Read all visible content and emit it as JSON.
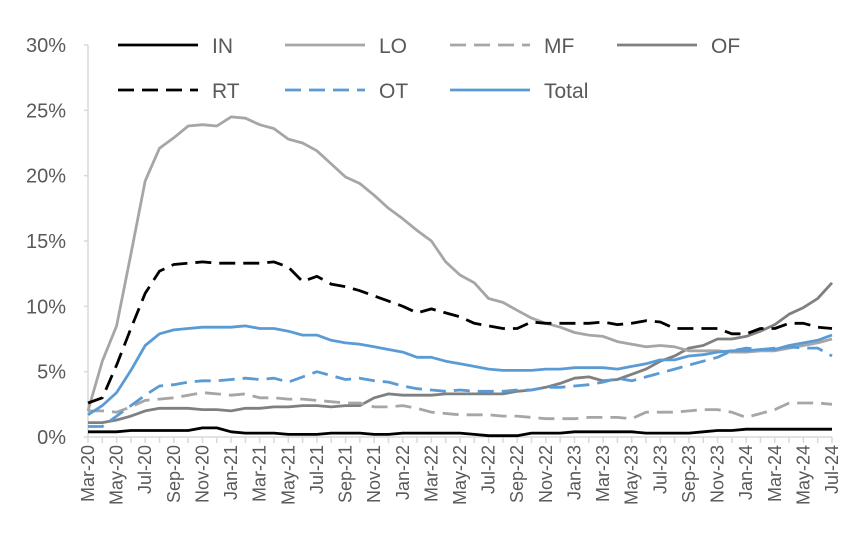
{
  "chart_data": {
    "type": "line",
    "title": "",
    "xlabel": "",
    "ylabel": "",
    "ylim": [
      0,
      30
    ],
    "y_ticks": [
      "0%",
      "5%",
      "10%",
      "15%",
      "20%",
      "25%",
      "30%"
    ],
    "grid": false,
    "legend_placement": "top",
    "x": [
      "Mar-20",
      "Apr-20",
      "May-20",
      "Jun-20",
      "Jul-20",
      "Aug-20",
      "Sep-20",
      "Oct-20",
      "Nov-20",
      "Dec-20",
      "Jan-21",
      "Feb-21",
      "Mar-21",
      "Apr-21",
      "May-21",
      "Jun-21",
      "Jul-21",
      "Aug-21",
      "Sep-21",
      "Oct-21",
      "Nov-21",
      "Dec-21",
      "Jan-22",
      "Feb-22",
      "Mar-22",
      "Apr-22",
      "May-22",
      "Jun-22",
      "Jul-22",
      "Aug-22",
      "Sep-22",
      "Oct-22",
      "Nov-22",
      "Dec-22",
      "Jan-23",
      "Feb-23",
      "Mar-23",
      "Apr-23",
      "May-23",
      "Jun-23",
      "Jul-23",
      "Aug-23",
      "Sep-23",
      "Oct-23",
      "Nov-23",
      "Dec-23",
      "Jan-24",
      "Feb-24",
      "Mar-24",
      "Apr-24",
      "May-24",
      "Jun-24",
      "Jul-24"
    ],
    "x_tick_labels": [
      "Mar-20",
      "May-20",
      "Jul-20",
      "Sep-20",
      "Nov-20",
      "Jan-21",
      "Mar-21",
      "May-21",
      "Jul-21",
      "Sep-21",
      "Nov-21",
      "Jan-22",
      "Mar-22",
      "May-22",
      "Jul-22",
      "Sep-22",
      "Nov-22",
      "Jan-23",
      "Mar-23",
      "May-23",
      "Jul-23",
      "Sep-23",
      "Nov-23",
      "Jan-24",
      "Mar-24",
      "May-24",
      "Jul-24"
    ],
    "series": [
      {
        "name": "IN",
        "color": "#000000",
        "dash": "solid",
        "values": [
          0.4,
          0.4,
          0.4,
          0.5,
          0.5,
          0.5,
          0.5,
          0.5,
          0.7,
          0.7,
          0.4,
          0.3,
          0.3,
          0.3,
          0.2,
          0.2,
          0.2,
          0.3,
          0.3,
          0.3,
          0.2,
          0.2,
          0.3,
          0.3,
          0.3,
          0.3,
          0.3,
          0.2,
          0.1,
          0.1,
          0.1,
          0.3,
          0.3,
          0.3,
          0.4,
          0.4,
          0.4,
          0.4,
          0.4,
          0.3,
          0.3,
          0.3,
          0.3,
          0.4,
          0.5,
          0.5,
          0.6,
          0.6,
          0.6,
          0.6,
          0.6,
          0.6,
          0.6
        ]
      },
      {
        "name": "LO",
        "color": "#a6a6a6",
        "dash": "solid",
        "values": [
          2.0,
          5.8,
          8.5,
          14.0,
          19.6,
          22.1,
          22.9,
          23.8,
          23.9,
          23.8,
          24.5,
          24.4,
          23.9,
          23.6,
          22.8,
          22.5,
          21.9,
          20.9,
          19.9,
          19.4,
          18.5,
          17.5,
          16.7,
          15.8,
          15.0,
          13.4,
          12.4,
          11.8,
          10.6,
          10.3,
          9.7,
          9.1,
          8.7,
          8.4,
          8.0,
          7.8,
          7.7,
          7.3,
          7.1,
          6.9,
          7.0,
          6.9,
          6.6,
          6.6,
          6.6,
          6.5,
          6.5,
          6.6,
          6.6,
          6.8,
          7.0,
          7.2,
          7.5
        ]
      },
      {
        "name": "MF",
        "color": "#a6a6a6",
        "dash": "dashed",
        "values": [
          2.0,
          2.0,
          1.9,
          2.3,
          2.8,
          2.9,
          3.0,
          3.2,
          3.4,
          3.3,
          3.2,
          3.3,
          3.0,
          3.0,
          2.9,
          2.9,
          2.8,
          2.7,
          2.6,
          2.6,
          2.3,
          2.3,
          2.4,
          2.2,
          1.9,
          1.8,
          1.7,
          1.7,
          1.7,
          1.6,
          1.6,
          1.5,
          1.4,
          1.4,
          1.4,
          1.5,
          1.5,
          1.5,
          1.4,
          1.9,
          1.9,
          1.9,
          2.0,
          2.1,
          2.1,
          1.9,
          1.5,
          1.8,
          2.1,
          2.6,
          2.6,
          2.6,
          2.5
        ]
      },
      {
        "name": "OF",
        "color": "#808080",
        "dash": "solid",
        "values": [
          1.1,
          1.1,
          1.3,
          1.6,
          2.0,
          2.2,
          2.2,
          2.2,
          2.1,
          2.1,
          2.0,
          2.2,
          2.2,
          2.3,
          2.3,
          2.4,
          2.4,
          2.3,
          2.4,
          2.4,
          3.0,
          3.3,
          3.2,
          3.2,
          3.2,
          3.3,
          3.3,
          3.3,
          3.3,
          3.3,
          3.5,
          3.6,
          3.8,
          4.1,
          4.5,
          4.6,
          4.3,
          4.4,
          4.8,
          5.2,
          5.8,
          6.2,
          6.8,
          7.0,
          7.5,
          7.5,
          7.7,
          8.1,
          8.6,
          9.4,
          9.9,
          10.6,
          11.8
        ]
      },
      {
        "name": "RT",
        "color": "#000000",
        "dash": "dashed",
        "values": [
          2.6,
          3.0,
          5.5,
          8.3,
          11.0,
          12.7,
          13.2,
          13.3,
          13.4,
          13.3,
          13.3,
          13.3,
          13.3,
          13.4,
          13.0,
          11.9,
          12.3,
          11.7,
          11.5,
          11.2,
          10.8,
          10.4,
          10.0,
          9.5,
          9.8,
          9.5,
          9.2,
          8.7,
          8.5,
          8.3,
          8.3,
          8.8,
          8.7,
          8.7,
          8.7,
          8.7,
          8.8,
          8.6,
          8.7,
          8.9,
          8.8,
          8.3,
          8.3,
          8.3,
          8.3,
          7.9,
          7.9,
          8.3,
          8.3,
          8.7,
          8.7,
          8.4,
          8.3
        ]
      },
      {
        "name": "OT",
        "color": "#5b9bd5",
        "dash": "dashed",
        "values": [
          0.8,
          0.8,
          1.6,
          2.4,
          3.2,
          3.9,
          4.0,
          4.2,
          4.3,
          4.3,
          4.4,
          4.5,
          4.4,
          4.5,
          4.2,
          4.6,
          5.0,
          4.7,
          4.4,
          4.5,
          4.3,
          4.2,
          3.9,
          3.7,
          3.6,
          3.5,
          3.6,
          3.5,
          3.5,
          3.5,
          3.6,
          3.6,
          3.8,
          3.8,
          3.9,
          4.0,
          4.2,
          4.5,
          4.3,
          4.6,
          4.9,
          5.2,
          5.5,
          5.8,
          6.1,
          6.6,
          6.8,
          6.7,
          6.8,
          6.9,
          6.8,
          6.8,
          6.2
        ]
      },
      {
        "name": "Total",
        "color": "#5b9bd5",
        "dash": "solid",
        "values": [
          1.7,
          2.4,
          3.4,
          5.1,
          7.0,
          7.9,
          8.2,
          8.3,
          8.4,
          8.4,
          8.4,
          8.5,
          8.3,
          8.3,
          8.1,
          7.8,
          7.8,
          7.4,
          7.2,
          7.1,
          6.9,
          6.7,
          6.5,
          6.1,
          6.1,
          5.8,
          5.6,
          5.4,
          5.2,
          5.1,
          5.1,
          5.1,
          5.2,
          5.2,
          5.3,
          5.3,
          5.3,
          5.2,
          5.4,
          5.6,
          5.9,
          5.9,
          6.2,
          6.3,
          6.5,
          6.6,
          6.6,
          6.7,
          6.7,
          7.0,
          7.2,
          7.4,
          7.8
        ]
      }
    ]
  }
}
